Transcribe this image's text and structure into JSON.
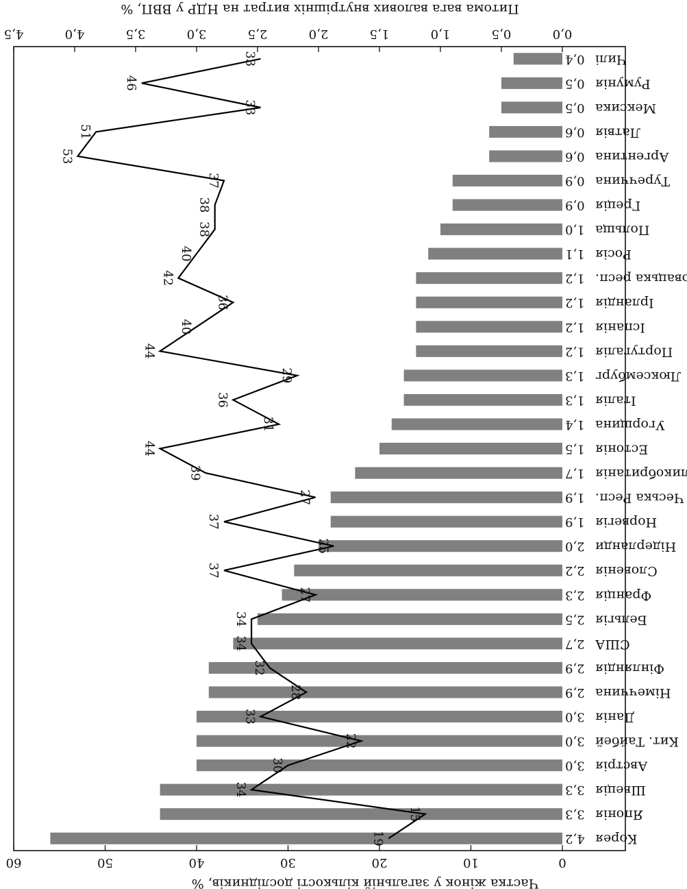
{
  "chart_data": {
    "type": "bar",
    "orientation": "horizontal",
    "bar_axis_label": "Питома вага валових внутрішніх витрат на НДР у ВВП, %",
    "line_axis_label": "Частка жінок у загальній кількості дослідників, %",
    "bar_axis_ticks": [
      "0,0",
      "0,5",
      "1,0",
      "1,5",
      "2,0",
      "2,5",
      "3,0",
      "3,5",
      "4,0",
      "4,5"
    ],
    "line_axis_ticks": [
      "0",
      "10",
      "20",
      "30",
      "40",
      "50",
      "60"
    ],
    "bar_axis_range": [
      0,
      4.5
    ],
    "line_axis_range": [
      0,
      60
    ],
    "bar_color": "#808080",
    "line_color": "#000000",
    "categories": [
      "Корея",
      "Японія",
      "Швеція",
      "Австрія",
      "Кит. Тайбей",
      "Данія",
      "Німеччина",
      "Фінляндія",
      "США",
      "Бельгія",
      "Франція",
      "Словенія",
      "Нідерланди",
      "Норвегія",
      "Чеська Респ.",
      "Великобританія",
      "Естонія",
      "Угорщина",
      "Італія",
      "Люксембург",
      "Португалія",
      "Іспанія",
      "Ірландія",
      "Словацька респ.",
      "Росія",
      "Польща",
      "Греція",
      "Туреччина",
      "Аргентина",
      "Латвія",
      "Мексика",
      "Румунія",
      "Чилі"
    ],
    "series": [
      {
        "kind": "bar",
        "values": [
          4.2,
          3.3,
          3.3,
          3.0,
          3.0,
          3.0,
          2.9,
          2.9,
          2.7,
          2.5,
          2.3,
          2.2,
          2.0,
          1.9,
          1.9,
          1.7,
          1.5,
          1.4,
          1.3,
          1.3,
          1.2,
          1.2,
          1.2,
          1.2,
          1.1,
          1.0,
          0.9,
          0.9,
          0.6,
          0.6,
          0.5,
          0.5,
          0.4
        ],
        "labels": [
          "4,2",
          "3,3",
          "3,3",
          "3,0",
          "3,0",
          "3,0",
          "2,9",
          "2,9",
          "2,7",
          "2,5",
          "2,3",
          "2,2",
          "2,0",
          "1,9",
          "1,9",
          "1,7",
          "1,5",
          "1,4",
          "1,3",
          "1,3",
          "1,2",
          "1,2",
          "1,2",
          "1,2",
          "1,1",
          "1,0",
          "0,9",
          "0,9",
          "0,6",
          "0,6",
          "0,5",
          "0,5",
          "0,4"
        ]
      },
      {
        "kind": "line",
        "values": [
          19,
          15,
          34,
          30,
          22,
          33,
          28,
          32,
          34,
          34,
          27,
          37,
          25,
          37,
          27,
          39,
          44,
          31,
          36,
          29,
          44,
          40,
          36,
          42,
          40,
          38,
          38,
          37,
          53,
          51,
          33,
          46,
          33
        ]
      }
    ]
  }
}
